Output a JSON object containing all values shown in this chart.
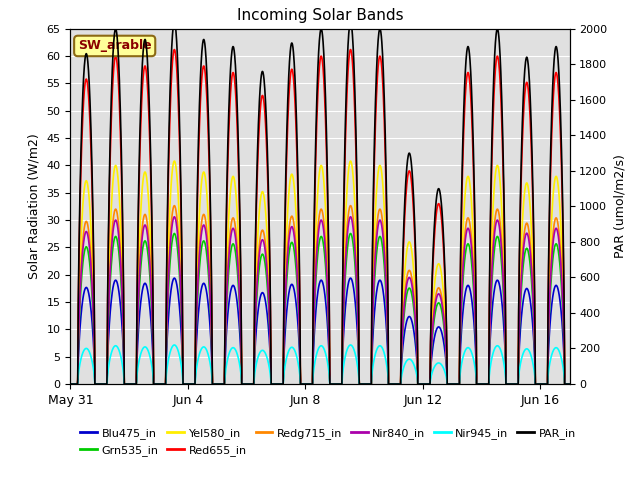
{
  "title": "Incoming Solar Bands",
  "ylabel_left": "Solar Radiation (W/m2)",
  "ylabel_right": "PAR (umol/m2/s)",
  "ylim_left": [
    0,
    65
  ],
  "ylim_right": [
    0,
    2000
  ],
  "yticks_left": [
    0,
    5,
    10,
    15,
    20,
    25,
    30,
    35,
    40,
    45,
    50,
    55,
    60,
    65
  ],
  "yticks_right": [
    0,
    200,
    400,
    600,
    800,
    1000,
    1200,
    1400,
    1600,
    1800,
    2000
  ],
  "bg_color": "#e0e0e0",
  "grid_color": "#ffffff",
  "annotation_text": "SW_arable",
  "annotation_color": "#8b0000",
  "annotation_bg": "#ffff99",
  "annotation_border": "#8b6914",
  "n_days": 18,
  "pts_per_day": 120,
  "xtick_labels": [
    "May 31",
    "Jun 4",
    "Jun 8",
    "Jun 12",
    "Jun 16"
  ],
  "xtick_positions": [
    0,
    4,
    8,
    12,
    16
  ],
  "series": [
    {
      "name": "Blu475_in",
      "color": "#0000cc",
      "peak": 19,
      "is_par": false
    },
    {
      "name": "Grn535_in",
      "color": "#00cc00",
      "peak": 27,
      "is_par": false
    },
    {
      "name": "Yel580_in",
      "color": "#ffee00",
      "peak": 40,
      "is_par": false
    },
    {
      "name": "Red655_in",
      "color": "#ff0000",
      "peak": 60,
      "is_par": false
    },
    {
      "name": "Redg715_in",
      "color": "#ff8800",
      "peak": 32,
      "is_par": false
    },
    {
      "name": "Nir840_in",
      "color": "#aa00aa",
      "peak": 30,
      "is_par": false
    },
    {
      "name": "Nir945_in",
      "color": "#00ffff",
      "peak": 7,
      "is_par": false
    },
    {
      "name": "PAR_in",
      "color": "#000000",
      "peak": 2000,
      "is_par": true
    }
  ],
  "cloud_factors": [
    0.93,
    1.0,
    0.97,
    1.02,
    0.97,
    0.95,
    0.88,
    0.96,
    1.0,
    1.02,
    1.0,
    0.65,
    0.55,
    0.95,
    1.0,
    0.92,
    0.95,
    1.0
  ],
  "legend_ncol": 6,
  "legend_fontsize": 8
}
